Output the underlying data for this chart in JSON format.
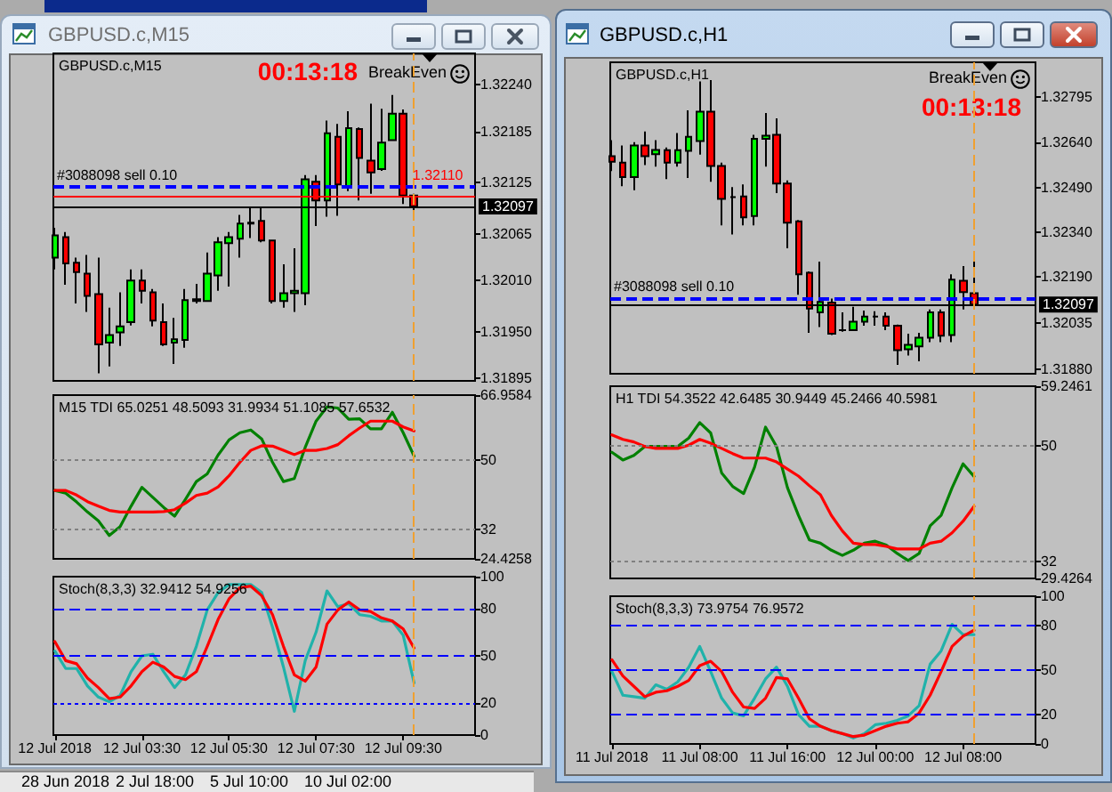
{
  "chart_data": [
    {
      "type": "candlestick",
      "title": "GBPUSD.c,M15",
      "annotations": [
        "BreakEven",
        "00:13:18"
      ],
      "x": [
        "2018-07-12T01:30",
        "2018-07-12T01:45",
        "2018-07-12T02:00",
        "2018-07-12T02:15",
        "2018-07-12T02:30",
        "2018-07-12T02:45",
        "2018-07-12T03:00",
        "2018-07-12T03:15",
        "2018-07-12T03:30",
        "2018-07-12T03:45",
        "2018-07-12T04:00",
        "2018-07-12T04:15",
        "2018-07-12T04:30",
        "2018-07-12T04:45",
        "2018-07-12T05:00",
        "2018-07-12T05:15",
        "2018-07-12T05:30",
        "2018-07-12T05:45",
        "2018-07-12T06:00",
        "2018-07-12T06:15",
        "2018-07-12T06:30",
        "2018-07-12T06:45",
        "2018-07-12T07:00",
        "2018-07-12T07:15",
        "2018-07-12T07:30",
        "2018-07-12T07:45",
        "2018-07-12T08:00",
        "2018-07-12T08:15",
        "2018-07-12T08:30",
        "2018-07-12T08:45",
        "2018-07-12T09:00",
        "2018-07-12T09:15",
        "2018-07-12T09:30",
        "2018-07-12T09:45"
      ],
      "ohlc": [
        [
          1.32037,
          1.32072,
          1.32023,
          1.32063
        ],
        [
          1.32061,
          1.32067,
          1.32005,
          1.3203
        ],
        [
          1.32031,
          1.32037,
          1.31983,
          1.3202
        ],
        [
          1.32018,
          1.3204,
          1.31973,
          1.31992
        ],
        [
          1.31994,
          1.32037,
          1.31901,
          1.31935
        ],
        [
          1.31937,
          1.31978,
          1.31909,
          1.31946
        ],
        [
          1.31949,
          1.31996,
          1.31933,
          1.31956
        ],
        [
          1.31961,
          1.32023,
          1.31957,
          1.3201
        ],
        [
          1.3201,
          1.32023,
          1.31983,
          1.31998
        ],
        [
          1.31996,
          1.32,
          1.31956,
          1.31963
        ],
        [
          1.31961,
          1.31983,
          1.31933,
          1.31935
        ],
        [
          1.31937,
          1.31966,
          1.31912,
          1.31941
        ],
        [
          1.3194,
          1.32,
          1.31931,
          1.31987
        ],
        [
          1.31986,
          1.32006,
          1.31983,
          1.31988
        ],
        [
          1.31986,
          1.32043,
          1.31985,
          1.32018
        ],
        [
          1.32016,
          1.32061,
          1.31998,
          1.32055
        ],
        [
          1.32054,
          1.32067,
          1.32003,
          1.32061
        ],
        [
          1.32059,
          1.32087,
          1.32037,
          1.32077
        ],
        [
          1.32077,
          1.32097,
          1.3206,
          1.32078
        ],
        [
          1.3208,
          1.32096,
          1.32055,
          1.32057
        ],
        [
          1.32057,
          1.32058,
          1.31983,
          1.31986
        ],
        [
          1.31986,
          1.32029,
          1.31978,
          1.31995
        ],
        [
          1.31995,
          1.32048,
          1.31973,
          1.31998
        ],
        [
          1.31995,
          1.32134,
          1.31981,
          1.32129
        ],
        [
          1.32126,
          1.32134,
          1.32074,
          1.32104
        ],
        [
          1.32104,
          1.32198,
          1.32085,
          1.32183
        ],
        [
          1.32179,
          1.32194,
          1.32086,
          1.32123
        ],
        [
          1.32119,
          1.32209,
          1.32115,
          1.32189
        ],
        [
          1.32188,
          1.3219,
          1.32104,
          1.32154
        ],
        [
          1.32151,
          1.32218,
          1.32112,
          1.32137
        ],
        [
          1.32141,
          1.32212,
          1.32139,
          1.32172
        ],
        [
          1.32175,
          1.32228,
          1.32174,
          1.32206
        ],
        [
          1.32206,
          1.32211,
          1.321,
          1.3211
        ],
        [
          1.3211,
          1.32112,
          1.32089,
          1.32097
        ]
      ],
      "colors": [
        "#00ff00",
        "#ff0000",
        "#ff0000",
        "#ff0000",
        "#ff0000",
        "#00ff00",
        "#00ff00",
        "#00ff00",
        "#ff0000",
        "#ff0000",
        "#ff0000",
        "#00ff00",
        "#00ff00",
        "#00ff00",
        "#00ff00",
        "#00ff00",
        "#00ff00",
        "#00ff00",
        "#000000",
        "#ff0000",
        "#ff0000",
        "#00ff00",
        "#00ff00",
        "#00ff00",
        "#ff0000",
        "#00ff00",
        "#ff0000",
        "#00ff00",
        "#ff0000",
        "#ff0000",
        "#00ff00",
        "#00ff00",
        "#ff0000",
        "#ff0000"
      ],
      "xlim": [
        "2018-07-12T01:28",
        "2018-07-12T11:09"
      ],
      "ylim": [
        1.31892,
        1.32277
      ],
      "yticks": [
        1.31895,
        {
          "value": 1.3195,
          "label": "1.31950"
        },
        {
          "value": 1.3201,
          "label": "1.32010"
        },
        1.32065,
        1.32125,
        1.32185,
        {
          "value": 1.3224,
          "label": "1.32240"
        }
      ],
      "tick_labels": "y",
      "ref_lines": [
        {
          "axis": "y",
          "value": 1.3212,
          "label": "#3088098 sell 0.10",
          "color": "#0000ff",
          "line_style": "dashed"
        },
        {
          "axis": "y",
          "value": 1.32097,
          "label": "1.32097",
          "color": "#000000",
          "line_style": "solid"
        },
        {
          "axis": "y",
          "value": 1.3211,
          "label": "1.32110",
          "color": "#ff0000",
          "line_style": "solid"
        },
        {
          "axis": "x",
          "value": "2018-07-12T09:45",
          "color": "#f0a030",
          "line_style": "dashed"
        }
      ]
    },
    {
      "type": "line",
      "title": "M15 TDI 65.0251 48.5093 31.9934 51.1085 57.6532",
      "x": [
        "2018-07-12T01:30",
        "2018-07-12T01:45",
        "2018-07-12T02:00",
        "2018-07-12T02:15",
        "2018-07-12T02:30",
        "2018-07-12T02:45",
        "2018-07-12T03:00",
        "2018-07-12T03:15",
        "2018-07-12T03:30",
        "2018-07-12T03:45",
        "2018-07-12T04:00",
        "2018-07-12T04:15",
        "2018-07-12T04:30",
        "2018-07-12T04:45",
        "2018-07-12T05:00",
        "2018-07-12T05:15",
        "2018-07-12T05:30",
        "2018-07-12T05:45",
        "2018-07-12T06:00",
        "2018-07-12T06:15",
        "2018-07-12T06:30",
        "2018-07-12T06:45",
        "2018-07-12T07:00",
        "2018-07-12T07:15",
        "2018-07-12T07:30",
        "2018-07-12T07:45",
        "2018-07-12T08:00",
        "2018-07-12T08:15",
        "2018-07-12T08:30",
        "2018-07-12T08:45",
        "2018-07-12T09:00",
        "2018-07-12T09:15",
        "2018-07-12T09:30",
        "2018-07-12T09:45"
      ],
      "series": [
        {
          "color": "#008000",
          "values": [
            42.2,
            41.5,
            39.2,
            36.6,
            34.3,
            30.5,
            32.8,
            38.1,
            43.0,
            40.4,
            37.8,
            35.5,
            39.9,
            44.5,
            46.5,
            51.4,
            55.3,
            57.2,
            57.9,
            55.6,
            49.5,
            44.5,
            45.3,
            53.4,
            60.2,
            63.9,
            63.6,
            60.7,
            60.8,
            58.2,
            58.2,
            62.5,
            57.2,
            51.1085
          ]
        },
        {
          "color": "#ff0000",
          "values": [
            42.2,
            42.2,
            41.0,
            39.3,
            38.1,
            37.0,
            36.6,
            36.6,
            36.6,
            36.6,
            36.7,
            37.2,
            38.9,
            40.9,
            41.5,
            43.1,
            46.0,
            49.5,
            52.6,
            53.8,
            53.7,
            52.6,
            51.5,
            52.6,
            52.6,
            53.1,
            54.1,
            56.4,
            58.4,
            60.2,
            60.2,
            60.2,
            58.7,
            57.6532
          ]
        }
      ],
      "xlim": [
        "2018-07-12T01:28",
        "2018-07-12T11:09"
      ],
      "ylim": [
        24.4258,
        66.9584
      ],
      "yticks": [
        24.4258,
        32,
        50,
        66.9584
      ],
      "tick_labels": "y",
      "marker": "none",
      "ref_lines": [
        {
          "axis": "y",
          "value": 50,
          "color": "#808080",
          "line_style": "dotted"
        },
        {
          "axis": "y",
          "value": 32,
          "color": "#808080",
          "line_style": "dotted"
        },
        {
          "axis": "x",
          "value": "2018-07-12T09:45",
          "color": "#f0a030",
          "line_style": "dashed"
        }
      ]
    },
    {
      "type": "line",
      "title": "Stoch(8,3,3) 32.9412 54.9256",
      "x": [
        "2018-07-12T01:30",
        "2018-07-12T01:45",
        "2018-07-12T02:00",
        "2018-07-12T02:15",
        "2018-07-12T02:30",
        "2018-07-12T02:45",
        "2018-07-12T03:00",
        "2018-07-12T03:15",
        "2018-07-12T03:30",
        "2018-07-12T03:45",
        "2018-07-12T04:00",
        "2018-07-12T04:15",
        "2018-07-12T04:30",
        "2018-07-12T04:45",
        "2018-07-12T05:00",
        "2018-07-12T05:15",
        "2018-07-12T05:30",
        "2018-07-12T05:45",
        "2018-07-12T06:00",
        "2018-07-12T06:15",
        "2018-07-12T06:30",
        "2018-07-12T06:45",
        "2018-07-12T07:00",
        "2018-07-12T07:15",
        "2018-07-12T07:30",
        "2018-07-12T07:45",
        "2018-07-12T08:00",
        "2018-07-12T08:15",
        "2018-07-12T08:30",
        "2018-07-12T08:45",
        "2018-07-12T09:00",
        "2018-07-12T09:15",
        "2018-07-12T09:30",
        "2018-07-12T09:45"
      ],
      "series": [
        {
          "color": "#20b2aa",
          "values": [
            53,
            42,
            42,
            31,
            24,
            21,
            25,
            40,
            50,
            51,
            40,
            30,
            38,
            56,
            79,
            90,
            95,
            95,
            95,
            90,
            68,
            43,
            15,
            47,
            65,
            91,
            81,
            83,
            76,
            75,
            72,
            72,
            63,
            32.9412
          ]
        },
        {
          "color": "#ff0000",
          "values": [
            59,
            47,
            45,
            36,
            30,
            23,
            24,
            31,
            40,
            46,
            43,
            37,
            35,
            40,
            56,
            73,
            86,
            93,
            94,
            88,
            76,
            56,
            38,
            34,
            43,
            70,
            79,
            84,
            79,
            78,
            74,
            72,
            67,
            54.9256
          ]
        }
      ],
      "xlim": [
        "2018-07-12T01:28",
        "2018-07-12T11:09"
      ],
      "xticks": [
        {
          "value": "2018-07-12T01:30",
          "label": "12 Jul 2018"
        },
        {
          "value": "2018-07-12T03:30",
          "label": "12 Jul 03:30"
        },
        {
          "value": "2018-07-12T05:30",
          "label": "12 Jul 05:30"
        },
        {
          "value": "2018-07-12T07:30",
          "label": "12 Jul 07:30"
        },
        {
          "value": "2018-07-12T09:30",
          "label": "12 Jul 09:30"
        }
      ],
      "ylim": [
        0,
        100
      ],
      "yticks": [
        0,
        20,
        50,
        80,
        100
      ],
      "marker": "none",
      "ref_lines": [
        {
          "axis": "y",
          "value": 80,
          "color": "#0000ff",
          "line_style": "dashed"
        },
        {
          "axis": "y",
          "value": 50,
          "color": "#0000ff",
          "line_style": "dashed"
        },
        {
          "axis": "y",
          "value": 20,
          "color": "#0000ff",
          "line_style": "dotted"
        },
        {
          "axis": "x",
          "value": "2018-07-12T09:45",
          "color": "#f0a030",
          "line_style": "dashed"
        }
      ]
    },
    {
      "type": "candlestick",
      "title": "GBPUSD.c,H1",
      "annotations": [
        "BreakEven",
        "00:13:18"
      ],
      "x": [
        "2018-07-11T00:00",
        "2018-07-11T01:00",
        "2018-07-11T02:00",
        "2018-07-11T03:00",
        "2018-07-11T04:00",
        "2018-07-11T05:00",
        "2018-07-11T06:00",
        "2018-07-11T07:00",
        "2018-07-11T08:00",
        "2018-07-11T09:00",
        "2018-07-11T10:00",
        "2018-07-11T11:00",
        "2018-07-11T12:00",
        "2018-07-11T13:00",
        "2018-07-11T14:00",
        "2018-07-11T15:00",
        "2018-07-11T16:00",
        "2018-07-11T17:00",
        "2018-07-11T18:00",
        "2018-07-11T19:00",
        "2018-07-11T20:00",
        "2018-07-11T21:00",
        "2018-07-11T22:00",
        "2018-07-11T23:00",
        "2018-07-12T00:00",
        "2018-07-12T01:00",
        "2018-07-12T02:00",
        "2018-07-12T03:00",
        "2018-07-12T04:00",
        "2018-07-12T05:00",
        "2018-07-12T06:00",
        "2018-07-12T07:00",
        "2018-07-12T08:00",
        "2018-07-12T09:00"
      ],
      "ohlc": [
        [
          1.32595,
          1.32649,
          1.32545,
          1.32576
        ],
        [
          1.32573,
          1.32631,
          1.32494,
          1.32525
        ],
        [
          1.32525,
          1.32642,
          1.32481,
          1.32631
        ],
        [
          1.32631,
          1.32678,
          1.32565,
          1.32595
        ],
        [
          1.32602,
          1.32649,
          1.3256,
          1.32616
        ],
        [
          1.32615,
          1.32624,
          1.32518,
          1.32573
        ],
        [
          1.32573,
          1.32673,
          1.3256,
          1.32615
        ],
        [
          1.32613,
          1.32749,
          1.32522,
          1.3266
        ],
        [
          1.32646,
          1.32846,
          1.326,
          1.32744
        ],
        [
          1.32744,
          1.3285,
          1.32509,
          1.32562
        ],
        [
          1.32562,
          1.32573,
          1.32363,
          1.32452
        ],
        [
          1.32458,
          1.32491,
          1.32332,
          1.32458
        ],
        [
          1.3246,
          1.325,
          1.32363,
          1.3239
        ],
        [
          1.32394,
          1.32667,
          1.32363,
          1.32653
        ],
        [
          1.32653,
          1.3274,
          1.3256,
          1.32664
        ],
        [
          1.32667,
          1.32722,
          1.32471,
          1.32503
        ],
        [
          1.32503,
          1.32514,
          1.32286,
          1.32372
        ],
        [
          1.32376,
          1.32381,
          1.3213,
          1.32199
        ],
        [
          1.32204,
          1.32208,
          1.32002,
          1.32084
        ],
        [
          1.32071,
          1.32241,
          1.32022,
          1.32106
        ],
        [
          1.32104,
          1.32117,
          1.31995,
          1.31999
        ],
        [
          1.32011,
          1.32071,
          1.32006,
          1.32011
        ],
        [
          1.32011,
          1.3209,
          1.32008,
          1.3204
        ],
        [
          1.3204,
          1.32077,
          1.32026,
          1.32057
        ],
        [
          1.32057,
          1.32075,
          1.32026,
          1.32057
        ],
        [
          1.32057,
          1.32071,
          1.32011,
          1.32026
        ],
        [
          1.32026,
          1.3203,
          1.31895,
          1.31944
        ],
        [
          1.31947,
          1.31999,
          1.31926,
          1.31962
        ],
        [
          1.31957,
          1.32002,
          1.31907,
          1.31986
        ],
        [
          1.31986,
          1.32081,
          1.31971,
          1.32071
        ],
        [
          1.32071,
          1.32081,
          1.31971,
          1.31993
        ],
        [
          1.31995,
          1.32199,
          1.31971,
          1.32181
        ],
        [
          1.32177,
          1.32226,
          1.32081,
          1.32139
        ],
        [
          1.32135,
          1.32254,
          1.32095,
          1.32097
        ]
      ],
      "colors": [
        "#ff0000",
        "#ff0000",
        "#00ff00",
        "#ff0000",
        "#00ff00",
        "#ff0000",
        "#00ff00",
        "#00ff00",
        "#00ff00",
        "#ff0000",
        "#ff0000",
        "#000000",
        "#ff0000",
        "#00ff00",
        "#00ff00",
        "#ff0000",
        "#ff0000",
        "#ff0000",
        "#ff0000",
        "#00ff00",
        "#ff0000",
        "#000000",
        "#00ff00",
        "#00ff00",
        "#000000",
        "#ff0000",
        "#ff0000",
        "#00ff00",
        "#00ff00",
        "#00ff00",
        "#ff0000",
        "#00ff00",
        "#ff0000",
        "#ff0000"
      ],
      "xlim": [
        "2018-07-10T23:51",
        "2018-07-12T14:36"
      ],
      "ylim": [
        1.31865,
        1.3291
      ],
      "yticks": [
        {
          "value": 1.3188,
          "label": "1.31880"
        },
        1.32035,
        {
          "value": 1.3219,
          "label": "1.32190"
        },
        {
          "value": 1.3234,
          "label": "1.32340"
        },
        {
          "value": 1.3249,
          "label": "1.32490"
        },
        {
          "value": 1.3264,
          "label": "1.32640"
        },
        1.32795
      ],
      "tick_labels": "y",
      "ref_lines": [
        {
          "axis": "y",
          "value": 1.3212,
          "label": "#3088098 sell 0.10",
          "color": "#0000ff",
          "line_style": "dashed"
        },
        {
          "axis": "y",
          "value": 1.32097,
          "label": "1.32097",
          "color": "#000000",
          "line_style": "solid"
        },
        {
          "axis": "x",
          "value": "2018-07-12T09:00",
          "color": "#f0a030",
          "line_style": "dashed"
        }
      ]
    },
    {
      "type": "line",
      "title": "H1 TDI 54.3522 42.6485 30.9449 45.2466 40.5981",
      "x": [
        "2018-07-11T00:00",
        "2018-07-11T01:00",
        "2018-07-11T02:00",
        "2018-07-11T03:00",
        "2018-07-11T04:00",
        "2018-07-11T05:00",
        "2018-07-11T06:00",
        "2018-07-11T07:00",
        "2018-07-11T08:00",
        "2018-07-11T09:00",
        "2018-07-11T10:00",
        "2018-07-11T11:00",
        "2018-07-11T12:00",
        "2018-07-11T13:00",
        "2018-07-11T14:00",
        "2018-07-11T15:00",
        "2018-07-11T16:00",
        "2018-07-11T17:00",
        "2018-07-11T18:00",
        "2018-07-11T19:00",
        "2018-07-11T20:00",
        "2018-07-11T21:00",
        "2018-07-11T22:00",
        "2018-07-11T23:00",
        "2018-07-12T00:00",
        "2018-07-12T01:00",
        "2018-07-12T02:00",
        "2018-07-12T03:00",
        "2018-07-12T04:00",
        "2018-07-12T05:00",
        "2018-07-12T06:00",
        "2018-07-12T07:00",
        "2018-07-12T08:00",
        "2018-07-12T09:00"
      ],
      "series": [
        {
          "color": "#008000",
          "values": [
            49.0,
            47.8,
            48.5,
            49.9,
            49.9,
            49.9,
            49.9,
            51.2,
            53.6,
            52.0,
            45.8,
            43.7,
            42.6,
            46.7,
            52.9,
            49.9,
            43.5,
            39.2,
            35.4,
            34.9,
            33.8,
            33.0,
            33.8,
            34.9,
            35.2,
            34.6,
            33.3,
            32.2,
            33.3,
            37.6,
            39.2,
            43.5,
            47.2,
            45.2466
          ]
        },
        {
          "color": "#ff0000",
          "values": [
            51.7,
            51.0,
            50.6,
            49.9,
            49.6,
            49.6,
            49.6,
            50.1,
            51.0,
            50.4,
            49.6,
            48.8,
            48.1,
            48.1,
            48.1,
            47.5,
            46.4,
            45.3,
            43.8,
            42.4,
            39.2,
            36.8,
            34.9,
            34.7,
            34.7,
            34.4,
            34.0,
            34.0,
            34.0,
            34.9,
            35.2,
            36.5,
            38.3,
            40.5981
          ]
        }
      ],
      "xlim": [
        "2018-07-10T23:51",
        "2018-07-12T14:36"
      ],
      "ylim": [
        29.4264,
        59.2461
      ],
      "yticks": [
        29.4264,
        32,
        50,
        59.2461
      ],
      "tick_labels": "y",
      "marker": "none",
      "ref_lines": [
        {
          "axis": "y",
          "value": 50,
          "color": "#808080",
          "line_style": "dotted"
        },
        {
          "axis": "y",
          "value": 32,
          "color": "#808080",
          "line_style": "dotted"
        },
        {
          "axis": "x",
          "value": "2018-07-12T09:00",
          "color": "#f0a030",
          "line_style": "dashed"
        }
      ]
    },
    {
      "type": "line",
      "title": "Stoch(8,3,3) 73.9754 76.9572",
      "x": [
        "2018-07-11T00:00",
        "2018-07-11T01:00",
        "2018-07-11T02:00",
        "2018-07-11T03:00",
        "2018-07-11T04:00",
        "2018-07-11T05:00",
        "2018-07-11T06:00",
        "2018-07-11T07:00",
        "2018-07-11T08:00",
        "2018-07-11T09:00",
        "2018-07-11T10:00",
        "2018-07-11T11:00",
        "2018-07-11T12:00",
        "2018-07-11T13:00",
        "2018-07-11T14:00",
        "2018-07-11T15:00",
        "2018-07-11T16:00",
        "2018-07-11T17:00",
        "2018-07-11T18:00",
        "2018-07-11T19:00",
        "2018-07-11T20:00",
        "2018-07-11T21:00",
        "2018-07-11T22:00",
        "2018-07-11T23:00",
        "2018-07-12T00:00",
        "2018-07-12T01:00",
        "2018-07-12T02:00",
        "2018-07-12T03:00",
        "2018-07-12T04:00",
        "2018-07-12T05:00",
        "2018-07-12T06:00",
        "2018-07-12T07:00",
        "2018-07-12T08:00",
        "2018-07-12T09:00"
      ],
      "series": [
        {
          "color": "#20b2aa",
          "values": [
            49,
            33,
            32,
            31,
            40,
            37,
            42,
            52,
            66,
            49,
            31,
            21,
            19,
            31,
            44,
            52,
            39,
            20,
            12,
            12,
            9,
            7,
            4,
            7,
            13,
            14,
            16,
            19,
            26,
            54,
            63,
            81,
            74,
            73.9754
          ]
        },
        {
          "color": "#ff0000",
          "values": [
            57,
            46,
            39,
            32,
            35,
            36,
            39,
            43,
            53,
            56,
            49,
            35,
            25,
            24,
            31,
            45,
            44,
            31,
            17,
            12,
            9,
            7,
            5,
            6,
            9,
            12,
            14,
            15,
            21,
            33,
            49,
            66,
            73,
            76.9572
          ]
        }
      ],
      "xlim": [
        "2018-07-10T23:51",
        "2018-07-12T14:36"
      ],
      "xticks": [
        {
          "value": "2018-07-11T00:00",
          "label": "11 Jul 2018"
        },
        {
          "value": "2018-07-11T08:00",
          "label": "11 Jul 08:00"
        },
        {
          "value": "2018-07-11T16:00",
          "label": "11 Jul 16:00"
        },
        {
          "value": "2018-07-12T00:00",
          "label": "12 Jul 00:00"
        },
        {
          "value": "2018-07-12T08:00",
          "label": "12 Jul 08:00"
        }
      ],
      "ylim": [
        0,
        100
      ],
      "yticks": [
        0,
        20,
        50,
        80,
        100
      ],
      "marker": "none",
      "ref_lines": [
        {
          "axis": "y",
          "value": 80,
          "color": "#0000ff",
          "line_style": "dashed"
        },
        {
          "axis": "y",
          "value": 50,
          "color": "#0000ff",
          "line_style": "dashed"
        },
        {
          "axis": "y",
          "value": 20,
          "color": "#0000ff",
          "line_style": "dashed"
        },
        {
          "axis": "x",
          "value": "2018-07-12T09:00",
          "color": "#f0a030",
          "line_style": "dashed"
        }
      ]
    },
    {
      "type": "other",
      "annotations": [
        "28 Jun 2018",
        "2 Jul 18:00",
        "5 Jul 10:00",
        "10 Jul 02:00"
      ]
    }
  ]
}
